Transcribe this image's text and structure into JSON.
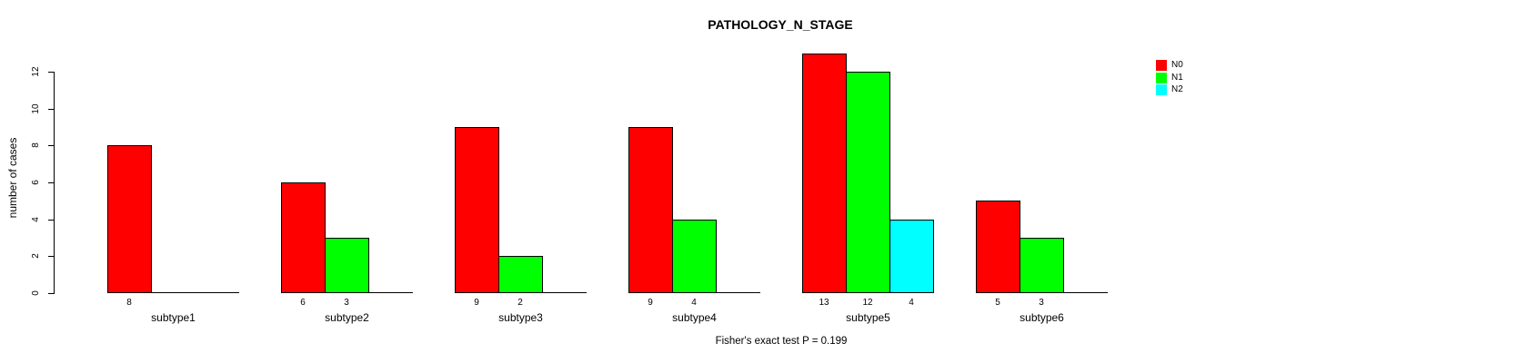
{
  "chart_data": {
    "type": "bar",
    "title": "PATHOLOGY_N_STAGE",
    "ylabel": "number of cases",
    "xlabel": "",
    "note": "Fisher's exact test P = 0.199",
    "categories": [
      "subtype1",
      "subtype2",
      "subtype3",
      "subtype4",
      "subtype5",
      "subtype6"
    ],
    "series": [
      {
        "name": "N0",
        "color": "#FF0000",
        "values": [
          8,
          6,
          9,
          9,
          13,
          5
        ]
      },
      {
        "name": "N1",
        "color": "#00FF00",
        "values": [
          0,
          3,
          2,
          4,
          12,
          3
        ]
      },
      {
        "name": "N2",
        "color": "#00FFFF",
        "values": [
          0,
          0,
          0,
          0,
          4,
          0
        ]
      }
    ],
    "bar_value_labels": [
      [
        "8",
        "",
        ""
      ],
      [
        "6",
        "3",
        ""
      ],
      [
        "9",
        "2",
        ""
      ],
      [
        "9",
        "4",
        ""
      ],
      [
        "13",
        "12",
        "4"
      ],
      [
        "5",
        "3",
        ""
      ]
    ],
    "ylim": [
      0,
      13
    ],
    "yticks": [
      0,
      2,
      4,
      6,
      8,
      10,
      12
    ],
    "grid": false,
    "legend_position": "top-right",
    "background_color": "#FFFFFF",
    "axis_color": "#000000"
  }
}
